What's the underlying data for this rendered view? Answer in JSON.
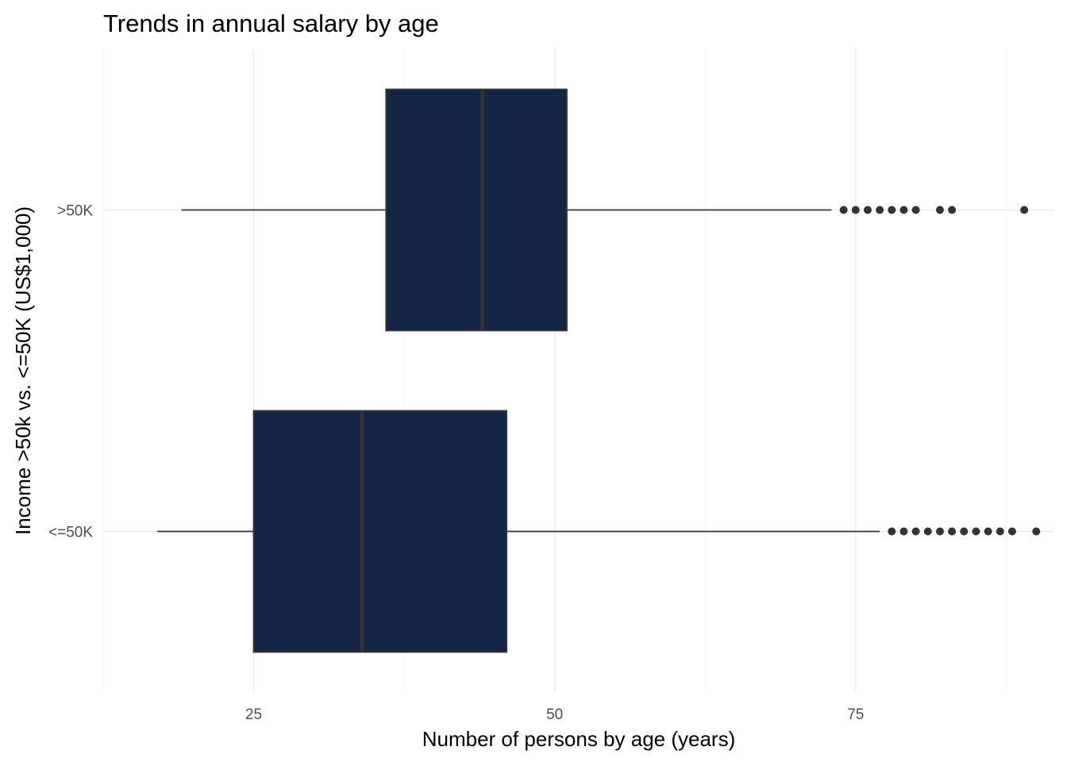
{
  "chart_data": {
    "type": "boxplot",
    "orientation": "horizontal",
    "title": "Trends in annual salary by age",
    "xlabel": "Number of persons by age (years)",
    "ylabel": "Income >50k vs. <=50K (US$1,000)",
    "xlim": [
      12.5,
      91.5
    ],
    "x_ticks": [
      25,
      50,
      75
    ],
    "x_tick_labels": [
      "25",
      "50",
      "75"
    ],
    "categories": [
      ">50K",
      "<=50K"
    ],
    "series": [
      {
        "category": ">50K",
        "whisker_low": 19,
        "q1": 36,
        "median": 44,
        "q3": 51,
        "whisker_high": 73,
        "outliers": [
          74,
          75,
          76,
          77,
          78,
          79,
          80,
          82,
          83,
          89
        ]
      },
      {
        "category": "<=50K",
        "whisker_low": 17,
        "q1": 25,
        "median": 34,
        "q3": 46,
        "whisker_high": 77,
        "outliers": [
          78,
          79,
          80,
          81,
          82,
          83,
          84,
          85,
          86,
          87,
          88,
          90
        ]
      }
    ],
    "fill_color": "#142545",
    "line_color": "#333333",
    "grid": true,
    "legend": "none"
  }
}
